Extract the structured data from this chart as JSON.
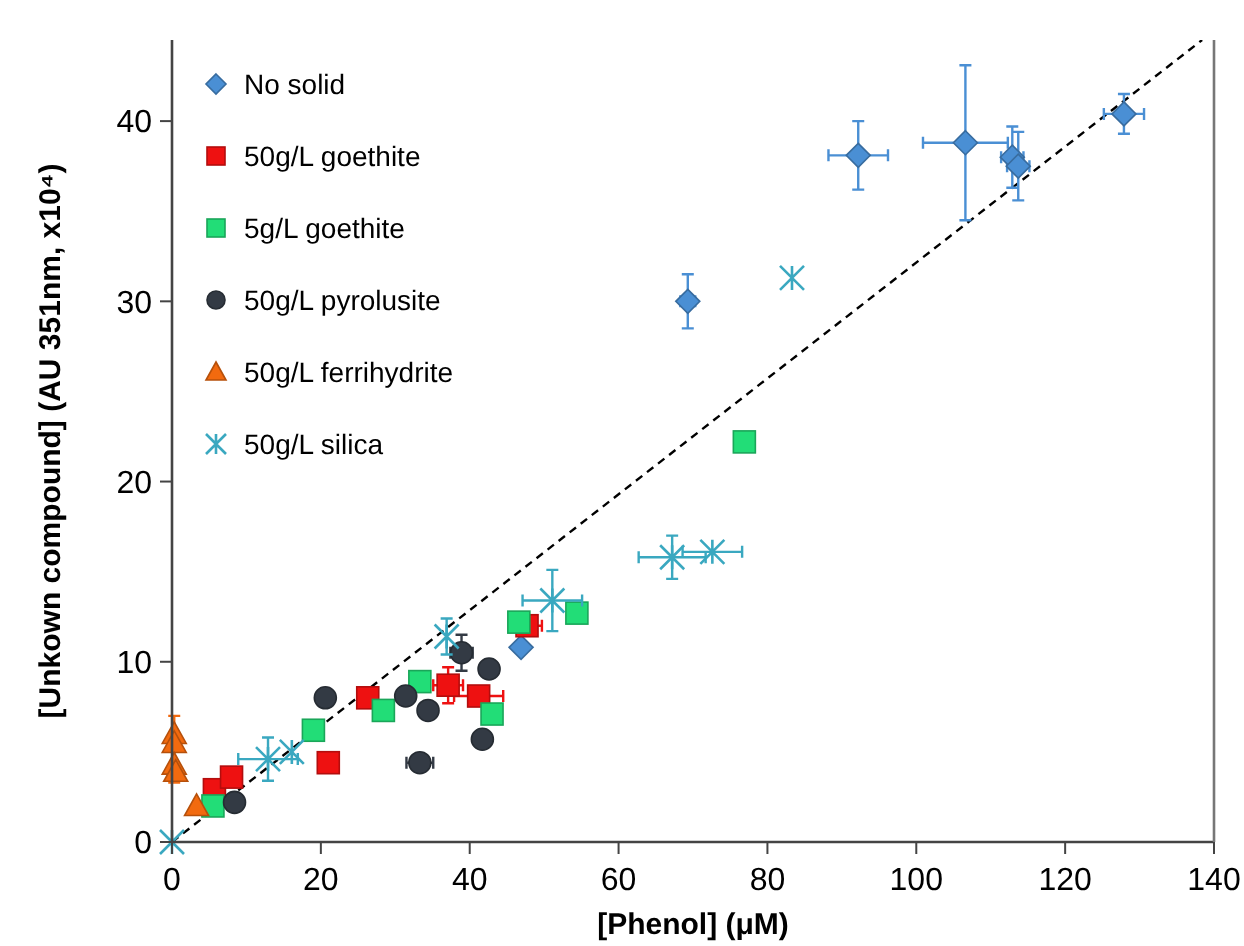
{
  "chart_data": {
    "type": "scatter",
    "xlabel": "[Phenol] (μM)",
    "ylabel": "[Unkown compound] (AU 351nm, x10⁴)",
    "xlim": [
      0,
      140
    ],
    "ylim": [
      0,
      44.5
    ],
    "xticks": [
      0,
      20,
      40,
      60,
      80,
      100,
      120,
      140
    ],
    "yticks": [
      0,
      10,
      20,
      30,
      40
    ],
    "grid": false,
    "legend": "top left",
    "series": [
      {
        "name": "No solid",
        "color": "#4a8fd4",
        "marker": "diamond",
        "x": [
          46.9,
          69.3,
          92.2,
          106.6,
          112.9,
          113.7,
          127.9
        ],
        "values": [
          10.8,
          30.0,
          38.1,
          38.8,
          38.0,
          37.5,
          40.4
        ],
        "errors": [
          null,
          1.5,
          1.9,
          4.3,
          1.7,
          1.9,
          1.1
        ],
        "xerrors": [
          null,
          1,
          4,
          5.7,
          1.5,
          1.5,
          2.7
        ]
      },
      {
        "name": "50g/L goethite",
        "color": "#ee1111",
        "marker": "square",
        "x": [
          5.7,
          8.0,
          21.0,
          26.3,
          37.1,
          41.2,
          47.7
        ],
        "values": [
          2.9,
          3.6,
          4.4,
          8.0,
          8.7,
          8.1,
          12.0
        ],
        "errors": [
          null,
          null,
          null,
          null,
          1,
          null,
          null
        ],
        "xerrors": [
          null,
          null,
          null,
          null,
          2,
          3.3,
          2
        ]
      },
      {
        "name": "5g/L goethite",
        "color": "#22dd77",
        "marker": "square",
        "x": [
          5.5,
          19.0,
          28.4,
          33.3,
          43.0,
          46.6,
          54.4,
          76.9
        ],
        "values": [
          2.0,
          6.2,
          7.3,
          8.9,
          7.1,
          12.2,
          12.7,
          22.2
        ]
      },
      {
        "name": "50g/L pyrolusite",
        "color": "#333a44",
        "marker": "circle",
        "x": [
          8.4,
          20.6,
          31.4,
          34.4,
          33.3,
          38.9,
          42.6,
          41.7
        ],
        "values": [
          2.2,
          8.0,
          8.1,
          7.3,
          4.4,
          10.5,
          9.6,
          5.7
        ],
        "errors": [
          null,
          null,
          null,
          null,
          null,
          1,
          null,
          null
        ],
        "xerrors": [
          null,
          null,
          null,
          null,
          1.8,
          1.5,
          null,
          null
        ]
      },
      {
        "name": "50g/L ferrihydrite",
        "color": "#f26a0f",
        "marker": "triangle",
        "x": [
          0.3,
          0.3,
          0.3,
          0.5,
          3.3
        ],
        "values": [
          6.0,
          5.5,
          4.3,
          3.9,
          2.0
        ],
        "errors": [
          1,
          null,
          1,
          null,
          null
        ]
      },
      {
        "name": "50g/L silica",
        "color": "#3aa8c0",
        "marker": "cross",
        "x": [
          0,
          12.9,
          16.1,
          36.9,
          51.1,
          67.2,
          72.6,
          83.3
        ],
        "values": [
          0,
          4.6,
          5.0,
          11.4,
          13.4,
          15.8,
          16.1,
          31.3
        ],
        "errors": [
          null,
          1.2,
          null,
          1,
          1.7,
          1.2,
          null,
          null
        ],
        "xerrors": [
          null,
          4,
          null,
          null,
          4,
          4.5,
          4,
          null
        ]
      },
      {
        "type": "line",
        "color": "#000000",
        "marker": "none",
        "line_style": "dashed",
        "x": [
          0,
          138.4
        ],
        "values": [
          0,
          44.5
        ]
      }
    ]
  }
}
